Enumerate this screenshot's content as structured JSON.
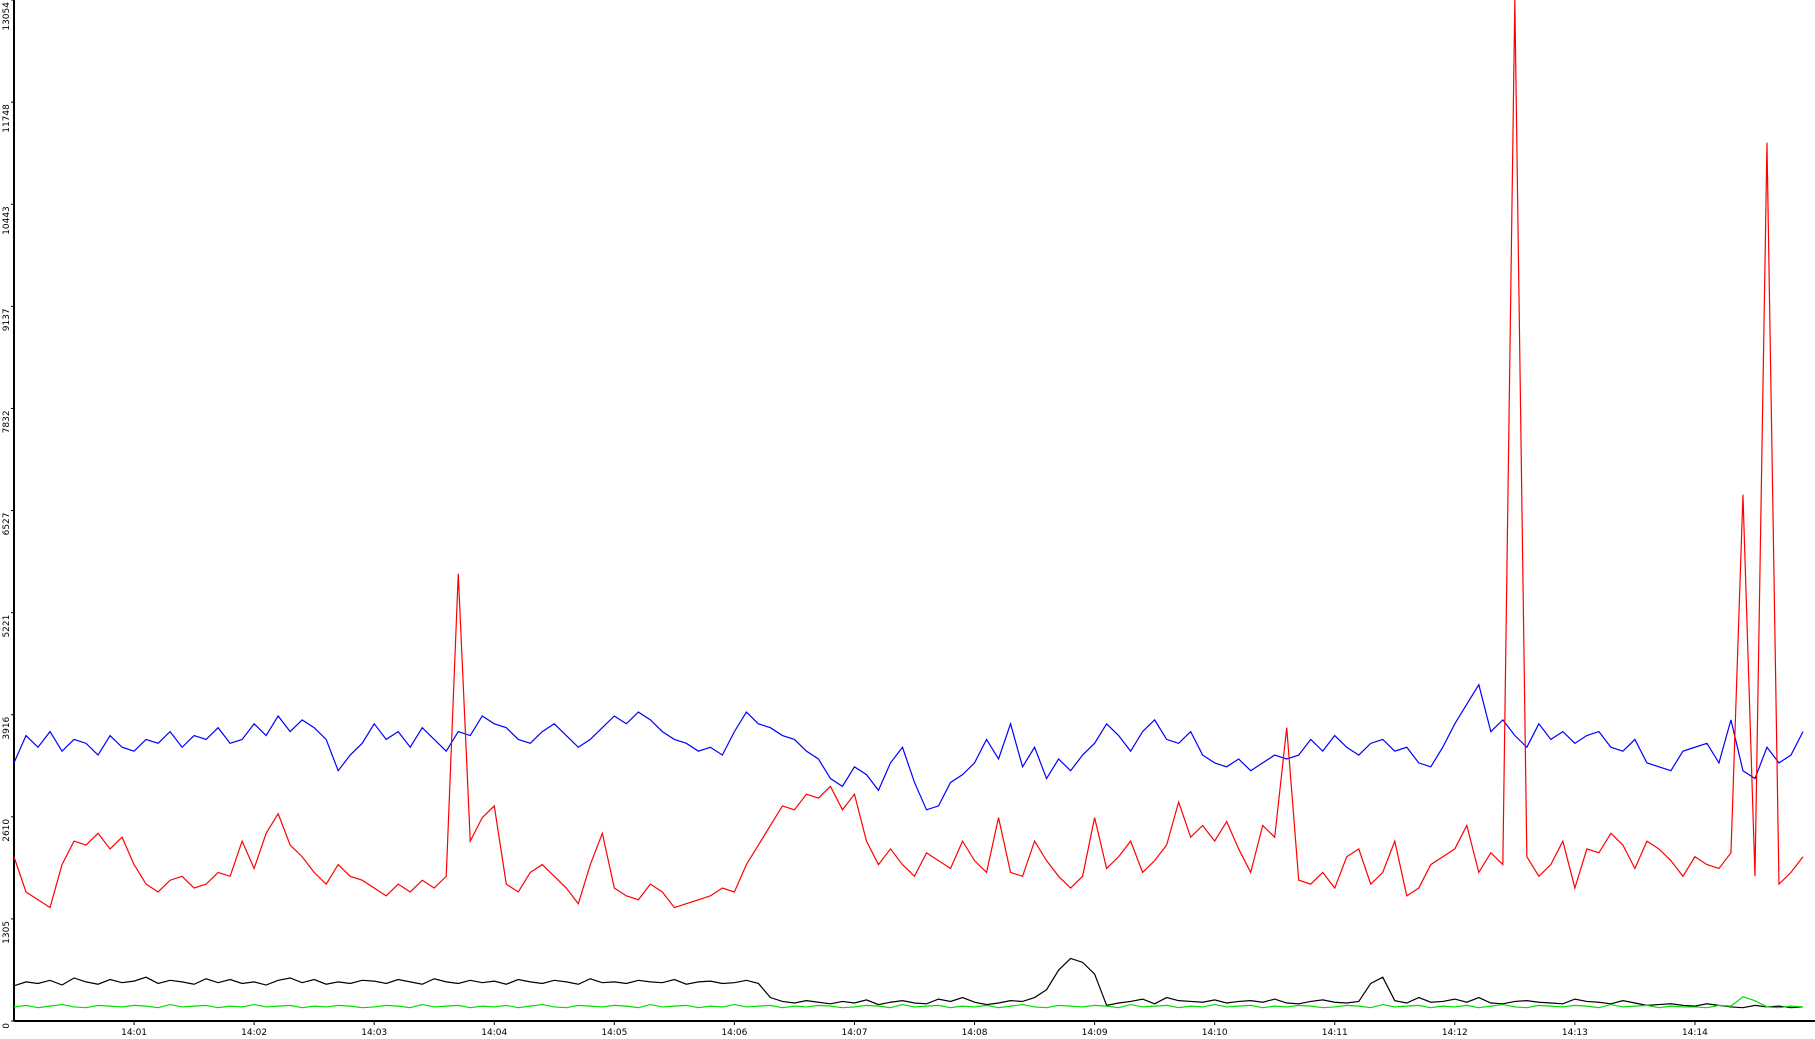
{
  "chart_data": {
    "type": "line",
    "xlim": [
      0,
      15
    ],
    "xticks": [
      {
        "value": 1,
        "label": "14:01"
      },
      {
        "value": 2,
        "label": "14:02"
      },
      {
        "value": 3,
        "label": "14:03"
      },
      {
        "value": 4,
        "label": "14:04"
      },
      {
        "value": 5,
        "label": "14:05"
      },
      {
        "value": 6,
        "label": "14:06"
      },
      {
        "value": 7,
        "label": "14:07"
      },
      {
        "value": 8,
        "label": "14:08"
      },
      {
        "value": 9,
        "label": "14:09"
      },
      {
        "value": 10,
        "label": "14:10"
      },
      {
        "value": 11,
        "label": "14:11"
      },
      {
        "value": 12,
        "label": "14:12"
      },
      {
        "value": 13,
        "label": "14:13"
      },
      {
        "value": 14,
        "label": "14:14"
      }
    ],
    "ylim": [
      0,
      13054
    ],
    "yticks": [
      0,
      1305,
      2610,
      3916,
      5221,
      6527,
      7832,
      9137,
      10443,
      11748,
      13054
    ],
    "x": [
      0,
      0.1,
      0.2,
      0.3,
      0.4,
      0.5,
      0.6,
      0.7,
      0.8,
      0.9,
      1,
      1.1,
      1.2,
      1.3,
      1.4,
      1.5,
      1.6,
      1.7,
      1.8,
      1.9,
      2,
      2.1,
      2.2,
      2.3,
      2.4,
      2.5,
      2.6,
      2.7,
      2.8,
      2.9,
      3,
      3.1,
      3.2,
      3.3,
      3.4,
      3.5,
      3.6,
      3.7,
      3.8,
      3.9,
      4,
      4.1,
      4.2,
      4.3,
      4.4,
      4.5,
      4.6,
      4.7,
      4.8,
      4.9,
      5,
      5.1,
      5.2,
      5.3,
      5.4,
      5.5,
      5.6,
      5.7,
      5.8,
      5.9,
      6,
      6.1,
      6.2,
      6.3,
      6.4,
      6.5,
      6.6,
      6.7,
      6.8,
      6.9,
      7,
      7.1,
      7.2,
      7.3,
      7.4,
      7.5,
      7.6,
      7.7,
      7.8,
      7.9,
      8,
      8.1,
      8.2,
      8.3,
      8.4,
      8.5,
      8.6,
      8.7,
      8.8,
      8.9,
      9,
      9.1,
      9.2,
      9.3,
      9.4,
      9.5,
      9.6,
      9.7,
      9.8,
      9.9,
      10,
      10.1,
      10.2,
      10.3,
      10.4,
      10.5,
      10.6,
      10.7,
      10.8,
      10.9,
      11,
      11.1,
      11.2,
      11.3,
      11.4,
      11.5,
      11.6,
      11.7,
      11.8,
      11.9,
      12,
      12.1,
      12.2,
      12.3,
      12.4,
      12.5,
      12.6,
      12.7,
      12.8,
      12.9,
      13,
      13.1,
      13.2,
      13.3,
      13.4,
      13.5,
      13.6,
      13.7,
      13.8,
      13.9,
      14,
      14.1,
      14.2,
      14.3,
      14.4,
      14.5,
      14.6,
      14.7,
      14.8,
      14.9
    ],
    "series": [
      {
        "color": "#0000ff",
        "values": [
          3300,
          3650,
          3500,
          3700,
          3450,
          3600,
          3550,
          3400,
          3650,
          3500,
          3450,
          3600,
          3550,
          3700,
          3500,
          3650,
          3600,
          3750,
          3550,
          3600,
          3800,
          3650,
          3900,
          3700,
          3850,
          3750,
          3600,
          3200,
          3400,
          3550,
          3800,
          3600,
          3700,
          3500,
          3750,
          3600,
          3450,
          3700,
          3650,
          3900,
          3800,
          3750,
          3600,
          3550,
          3700,
          3800,
          3650,
          3500,
          3600,
          3750,
          3900,
          3800,
          3950,
          3850,
          3700,
          3600,
          3550,
          3450,
          3500,
          3400,
          3700,
          3950,
          3800,
          3750,
          3650,
          3600,
          3450,
          3350,
          3100,
          3000,
          3250,
          3150,
          2950,
          3300,
          3500,
          3050,
          2700,
          2750,
          3050,
          3150,
          3300,
          3600,
          3350,
          3800,
          3250,
          3500,
          3100,
          3350,
          3200,
          3400,
          3550,
          3800,
          3650,
          3450,
          3700,
          3850,
          3600,
          3550,
          3700,
          3400,
          3300,
          3250,
          3350,
          3200,
          3300,
          3400,
          3350,
          3400,
          3600,
          3450,
          3650,
          3500,
          3400,
          3550,
          3600,
          3450,
          3500,
          3300,
          3250,
          3500,
          3800,
          4050,
          4300,
          3700,
          3850,
          3650,
          3500,
          3800,
          3600,
          3700,
          3550,
          3650,
          3700,
          3500,
          3450,
          3600,
          3300,
          3250,
          3200,
          3450,
          3500,
          3550,
          3300,
          3850,
          3200,
          3100,
          3500,
          3300,
          3400,
          3700
        ]
      },
      {
        "color": "#ff0000",
        "values": [
          2100,
          1650,
          1550,
          1450,
          2000,
          2300,
          2250,
          2400,
          2200,
          2350,
          2000,
          1750,
          1650,
          1800,
          1850,
          1700,
          1750,
          1900,
          1850,
          2300,
          1950,
          2400,
          2650,
          2250,
          2100,
          1900,
          1750,
          2000,
          1850,
          1800,
          1700,
          1600,
          1750,
          1650,
          1800,
          1700,
          1850,
          5720,
          2300,
          2600,
          2750,
          1750,
          1650,
          1900,
          2000,
          1850,
          1700,
          1500,
          2000,
          2400,
          1700,
          1600,
          1550,
          1750,
          1650,
          1450,
          1500,
          1550,
          1600,
          1700,
          1650,
          2000,
          2250,
          2500,
          2750,
          2700,
          2900,
          2850,
          3000,
          2700,
          2900,
          2300,
          2000,
          2200,
          2000,
          1850,
          2150,
          2050,
          1950,
          2300,
          2050,
          1900,
          2600,
          1900,
          1850,
          2300,
          2050,
          1850,
          1700,
          1850,
          2600,
          1950,
          2100,
          2300,
          1900,
          2050,
          2250,
          2800,
          2350,
          2500,
          2300,
          2550,
          2200,
          1900,
          2500,
          2350,
          3750,
          1800,
          1750,
          1900,
          1700,
          2100,
          2200,
          1750,
          1900,
          2300,
          1600,
          1700,
          2000,
          2100,
          2200,
          2500,
          1900,
          2150,
          2000,
          13054,
          2100,
          1850,
          2000,
          2300,
          1700,
          2200,
          2150,
          2400,
          2250,
          1950,
          2300,
          2200,
          2050,
          1850,
          2100,
          2000,
          1950,
          2150,
          6730,
          1850,
          11230,
          1750,
          1900,
          2100
        ]
      },
      {
        "color": "#000000",
        "values": [
          450,
          500,
          480,
          520,
          460,
          550,
          500,
          470,
          530,
          490,
          510,
          560,
          480,
          520,
          500,
          470,
          540,
          490,
          530,
          480,
          500,
          460,
          520,
          550,
          490,
          530,
          470,
          500,
          480,
          520,
          510,
          480,
          530,
          500,
          470,
          540,
          500,
          480,
          520,
          490,
          510,
          470,
          530,
          500,
          480,
          520,
          500,
          470,
          540,
          490,
          500,
          480,
          520,
          500,
          490,
          530,
          470,
          500,
          510,
          480,
          490,
          520,
          480,
          300,
          250,
          230,
          260,
          240,
          220,
          250,
          230,
          270,
          210,
          240,
          260,
          230,
          220,
          280,
          250,
          300,
          240,
          210,
          230,
          260,
          250,
          300,
          400,
          650,
          800,
          750,
          600,
          200,
          230,
          250,
          280,
          220,
          300,
          260,
          250,
          240,
          270,
          230,
          250,
          260,
          240,
          280,
          230,
          220,
          250,
          270,
          240,
          230,
          250,
          480,
          560,
          260,
          230,
          300,
          240,
          250,
          280,
          240,
          300,
          230,
          220,
          250,
          260,
          240,
          230,
          220,
          280,
          250,
          240,
          220,
          260,
          230,
          200,
          210,
          220,
          200,
          190,
          220,
          200,
          180,
          170,
          200,
          180,
          190,
          170,
          180
        ]
      },
      {
        "color": "#00dd00",
        "values": [
          180,
          200,
          170,
          190,
          210,
          180,
          170,
          200,
          190,
          180,
          200,
          190,
          170,
          210,
          180,
          190,
          200,
          170,
          190,
          180,
          210,
          180,
          190,
          200,
          170,
          190,
          180,
          200,
          190,
          170,
          180,
          200,
          190,
          170,
          210,
          180,
          190,
          200,
          170,
          190,
          180,
          200,
          170,
          190,
          210,
          180,
          170,
          200,
          190,
          180,
          200,
          190,
          170,
          210,
          180,
          190,
          200,
          170,
          190,
          180,
          210,
          180,
          190,
          200,
          170,
          190,
          180,
          200,
          190,
          170,
          180,
          200,
          190,
          170,
          210,
          180,
          190,
          200,
          170,
          190,
          180,
          200,
          170,
          190,
          210,
          180,
          170,
          200,
          190,
          180,
          200,
          190,
          170,
          210,
          180,
          190,
          200,
          170,
          190,
          180,
          210,
          180,
          190,
          200,
          170,
          190,
          180,
          200,
          190,
          170,
          180,
          200,
          190,
          170,
          210,
          180,
          190,
          200,
          170,
          190,
          180,
          200,
          170,
          190,
          210,
          180,
          170,
          200,
          190,
          180,
          200,
          190,
          170,
          210,
          180,
          190,
          200,
          170,
          190,
          180,
          180,
          170,
          200,
          190,
          310,
          260,
          180,
          170,
          190,
          180
        ]
      }
    ]
  }
}
